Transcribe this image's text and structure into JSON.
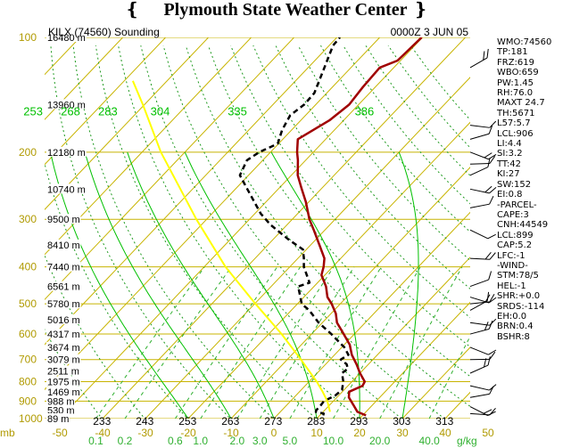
{
  "header": {
    "title": "Plymouth State Weather Center"
  },
  "chart_data": {
    "type": "line",
    "title": "KILX (74560) Sounding",
    "valid_time": "0000Z  3 JUN 05",
    "pressure_levels": [
      100,
      200,
      300,
      400,
      500,
      600,
      700,
      800,
      900,
      1000
    ],
    "heights": [
      {
        "p": 100,
        "label": "16480 m"
      },
      {
        "p": 150,
        "label": "13960 m"
      },
      {
        "p": 200,
        "label": "12180 m"
      },
      {
        "p": 250,
        "label": "10740 m"
      },
      {
        "p": 300,
        "label": "9500 m"
      },
      {
        "p": 350,
        "label": "8410 m"
      },
      {
        "p": 400,
        "label": "7440 m"
      },
      {
        "p": 450,
        "label": "6561 m"
      },
      {
        "p": 500,
        "label": "5780 m"
      },
      {
        "p": 550,
        "label": "5016 m"
      },
      {
        "p": 600,
        "label": "4317 m"
      },
      {
        "p": 650,
        "label": "3674 m"
      },
      {
        "p": 700,
        "label": "3079 m"
      },
      {
        "p": 750,
        "label": "2511 m"
      },
      {
        "p": 800,
        "label": "1975 m"
      },
      {
        "p": 850,
        "label": "1469 m"
      },
      {
        "p": 900,
        "label": "988 m"
      },
      {
        "p": 950,
        "label": "530 m"
      },
      {
        "p": 1000,
        "label": "89 m"
      }
    ],
    "temperature_ticks": [
      -50,
      -40,
      -30,
      -20,
      -10,
      0,
      10,
      20,
      30,
      40,
      50
    ],
    "theta_labels_bottom": [
      233,
      243,
      253,
      263,
      273,
      283,
      293,
      303,
      313
    ],
    "theta_labels_top": [
      253,
      268,
      283,
      304,
      335,
      386
    ],
    "mixing_ratio_labels": [
      "0.1",
      "0.2",
      "0.6",
      "1.0",
      "2.0",
      "3.0",
      "5.0",
      "10.0",
      "20.0",
      "40.0"
    ],
    "bottom_left_label": "mb",
    "mixing_ratio_unit": "g/kg",
    "series": [
      {
        "name": "temperature",
        "points": [
          {
            "p": 981,
            "t": 20.8
          },
          {
            "p": 960,
            "t": 18.0
          },
          {
            "p": 925,
            "t": 15.8
          },
          {
            "p": 880,
            "t": 12.8
          },
          {
            "p": 850,
            "t": 11.6
          },
          {
            "p": 820,
            "t": 13.4
          },
          {
            "p": 800,
            "t": 13.0
          },
          {
            "p": 760,
            "t": 10.0
          },
          {
            "p": 720,
            "t": 7.2
          },
          {
            "p": 680,
            "t": 4.0
          },
          {
            "p": 640,
            "t": 1.3
          },
          {
            "p": 600,
            "t": -2.5
          },
          {
            "p": 560,
            "t": -6.6
          },
          {
            "p": 530,
            "t": -8.9
          },
          {
            "p": 500,
            "t": -12.0
          },
          {
            "p": 480,
            "t": -14.5
          },
          {
            "p": 450,
            "t": -17.2
          },
          {
            "p": 420,
            "t": -20.8
          },
          {
            "p": 400,
            "t": -22.1
          },
          {
            "p": 380,
            "t": -23.8
          },
          {
            "p": 350,
            "t": -28.0
          },
          {
            "p": 320,
            "t": -32.6
          },
          {
            "p": 300,
            "t": -36.0
          },
          {
            "p": 270,
            "t": -40.7
          },
          {
            "p": 250,
            "t": -44.5
          },
          {
            "p": 230,
            "t": -48.5
          },
          {
            "p": 210,
            "t": -51.8
          },
          {
            "p": 200,
            "t": -53.8
          },
          {
            "p": 185,
            "t": -56.5
          },
          {
            "p": 165,
            "t": -53.3
          },
          {
            "p": 150,
            "t": -52.2
          },
          {
            "p": 135,
            "t": -52.9
          },
          {
            "p": 120,
            "t": -53.3
          },
          {
            "p": 115,
            "t": -50.7
          },
          {
            "p": 105,
            "t": -50.4
          },
          {
            "p": 100,
            "t": -50.2
          }
        ]
      },
      {
        "name": "dewpoint",
        "points": [
          {
            "p": 981,
            "t": 10.8
          },
          {
            "p": 970,
            "t": 10.5
          },
          {
            "p": 960,
            "t": 8.3
          },
          {
            "p": 950,
            "t": 8.0
          },
          {
            "p": 925,
            "t": 8.0
          },
          {
            "p": 900,
            "t": 7.8
          },
          {
            "p": 870,
            "t": 9.2
          },
          {
            "p": 840,
            "t": 9.5
          },
          {
            "p": 800,
            "t": 8.0
          },
          {
            "p": 760,
            "t": 5.8
          },
          {
            "p": 740,
            "t": 6.2
          },
          {
            "p": 720,
            "t": 4.9
          },
          {
            "p": 700,
            "t": 2.5
          },
          {
            "p": 680,
            "t": 3.2
          },
          {
            "p": 650,
            "t": 0.6
          },
          {
            "p": 600,
            "t": -5.4
          },
          {
            "p": 560,
            "t": -10.9
          },
          {
            "p": 520,
            "t": -15.8
          },
          {
            "p": 500,
            "t": -19.0
          },
          {
            "p": 450,
            "t": -23.7
          },
          {
            "p": 440,
            "t": -21.9
          },
          {
            "p": 400,
            "t": -26.7
          },
          {
            "p": 380,
            "t": -28.6
          },
          {
            "p": 360,
            "t": -30.8
          },
          {
            "p": 340,
            "t": -36.1
          },
          {
            "p": 310,
            "t": -43.9
          },
          {
            "p": 290,
            "t": -48.6
          },
          {
            "p": 250,
            "t": -57.2
          },
          {
            "p": 230,
            "t": -62.0
          },
          {
            "p": 210,
            "t": -63.7
          },
          {
            "p": 200,
            "t": -62.6
          },
          {
            "p": 190,
            "t": -60.2
          },
          {
            "p": 175,
            "t": -62.2
          },
          {
            "p": 160,
            "t": -63.6
          },
          {
            "p": 150,
            "t": -62.7
          },
          {
            "p": 140,
            "t": -62.9
          },
          {
            "p": 120,
            "t": -66.2
          },
          {
            "p": 105,
            "t": -69.1
          },
          {
            "p": 100,
            "t": -69.3
          }
        ]
      },
      {
        "name": "parcel",
        "points": [
          {
            "p": 960,
            "t": 11.6
          },
          {
            "p": 900,
            "t": 8.6
          },
          {
            "p": 850,
            "t": 5.4
          },
          {
            "p": 800,
            "t": 1.8
          },
          {
            "p": 700,
            "t": -6.8
          },
          {
            "p": 600,
            "t": -17.0
          },
          {
            "p": 500,
            "t": -29.8
          },
          {
            "p": 400,
            "t": -45.0
          },
          {
            "p": 300,
            "t": -62.4
          },
          {
            "p": 200,
            "t": -85.6
          },
          {
            "p": 150,
            "t": -100.4
          },
          {
            "p": 130,
            "t": -108.0
          }
        ]
      }
    ],
    "stats": [
      "WMO:74560",
      "TP:181",
      "FRZ:619",
      "WBO:659",
      "PW:1.45",
      "RH:76.0",
      "MAXT 24.7",
      "TH:5671",
      "L57:5.7",
      "LCL:906",
      "LI:4.4",
      "SI:3.2",
      "TT:42",
      "KI:27",
      "SW:152",
      "EI:0.8",
      "-PARCEL-",
      "CAPE:3",
      "CNH:44549",
      "LCL:899",
      "CAP:5.2",
      "LFC:-1",
      "-WIND-",
      "STM:78/5",
      "HEL:-1",
      "SHR:+0.0",
      "SRDS:-114",
      "EH:0.0",
      "BRN:0.4",
      "BSHR:8"
    ],
    "colors": {
      "grid": "#c8b400",
      "dry_adiabat": "#1e9a1e",
      "moist_adiabat": "#00c000",
      "mixing_ratio": "#30b030",
      "temperature": "#a00000",
      "dewpoint": "#000000",
      "parcel": "#ffff00",
      "label": "#b09a00"
    }
  }
}
